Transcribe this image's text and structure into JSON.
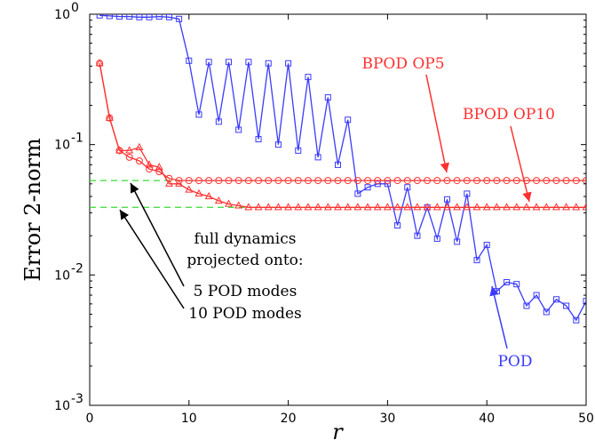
{
  "chart_data": {
    "type": "line",
    "xlabel": "r",
    "ylabel": "Error 2-norm",
    "xlim": [
      0,
      50
    ],
    "ylim": [
      0.001,
      1
    ],
    "yscale": "log",
    "grid": false,
    "xticks": [
      0,
      10,
      20,
      30,
      40,
      50
    ],
    "xtick_labels": [
      "0",
      "10",
      "20",
      "30",
      "40",
      "50"
    ],
    "yticks": [
      0.001,
      0.01,
      0.1,
      1
    ],
    "ytick_labels": [
      {
        "base": "10",
        "exp": "-3"
      },
      {
        "base": "10",
        "exp": "-2"
      },
      {
        "base": "10",
        "exp": "-1"
      },
      {
        "base": "10",
        "exp": "0"
      }
    ],
    "series": [
      {
        "name": "POD",
        "color": "#3a3aff",
        "marker": "square",
        "x": [
          1,
          2,
          3,
          4,
          5,
          6,
          7,
          8,
          9,
          10,
          11,
          12,
          13,
          14,
          15,
          16,
          17,
          18,
          19,
          20,
          21,
          22,
          23,
          24,
          25,
          26,
          27,
          28,
          29,
          30,
          31,
          32,
          33,
          34,
          35,
          36,
          37,
          38,
          39,
          40,
          41,
          42,
          43,
          44,
          45,
          46,
          47,
          48,
          49,
          50
        ],
        "y": [
          0.98,
          0.97,
          0.96,
          0.96,
          0.95,
          0.95,
          0.96,
          0.95,
          0.92,
          0.44,
          0.17,
          0.43,
          0.15,
          0.43,
          0.13,
          0.43,
          0.11,
          0.42,
          0.1,
          0.42,
          0.09,
          0.33,
          0.08,
          0.23,
          0.07,
          0.155,
          0.042,
          0.047,
          0.05,
          0.05,
          0.024,
          0.047,
          0.02,
          0.033,
          0.019,
          0.038,
          0.018,
          0.042,
          0.013,
          0.017,
          0.0075,
          0.0088,
          0.0085,
          0.0058,
          0.007,
          0.0052,
          0.0065,
          0.0058,
          0.0045,
          0.0063
        ]
      },
      {
        "name": "BPOD OP5",
        "color": "#ff3030",
        "marker": "circle",
        "x": [
          1,
          2,
          3,
          4,
          5,
          6,
          7,
          8,
          9,
          10,
          11,
          12,
          13,
          14,
          15,
          16,
          17,
          18,
          19,
          20,
          21,
          22,
          23,
          24,
          25,
          26,
          27,
          28,
          29,
          30,
          31,
          32,
          33,
          34,
          35,
          36,
          37,
          38,
          39,
          40,
          41,
          42,
          43,
          44,
          45,
          46,
          47,
          48,
          49,
          50
        ],
        "y": [
          0.42,
          0.16,
          0.09,
          0.08,
          0.075,
          0.065,
          0.062,
          0.055,
          0.053,
          0.053,
          0.053,
          0.053,
          0.053,
          0.053,
          0.053,
          0.053,
          0.053,
          0.053,
          0.053,
          0.053,
          0.053,
          0.053,
          0.053,
          0.053,
          0.053,
          0.053,
          0.053,
          0.053,
          0.053,
          0.053,
          0.053,
          0.053,
          0.053,
          0.053,
          0.053,
          0.053,
          0.053,
          0.053,
          0.053,
          0.053,
          0.053,
          0.053,
          0.053,
          0.053,
          0.053,
          0.053,
          0.053,
          0.053,
          0.053,
          0.053
        ]
      },
      {
        "name": "BPOD OP10",
        "color": "#ff3030",
        "marker": "triangle",
        "x": [
          1,
          2,
          3,
          4,
          5,
          6,
          7,
          8,
          9,
          10,
          11,
          12,
          13,
          14,
          15,
          16,
          17,
          18,
          19,
          20,
          21,
          22,
          23,
          24,
          25,
          26,
          27,
          28,
          29,
          30,
          31,
          32,
          33,
          34,
          35,
          36,
          37,
          38,
          39,
          40,
          41,
          42,
          43,
          44,
          45,
          46,
          47,
          48,
          49,
          50
        ],
        "y": [
          0.42,
          0.16,
          0.09,
          0.09,
          0.095,
          0.07,
          0.067,
          0.05,
          0.05,
          0.045,
          0.042,
          0.04,
          0.037,
          0.035,
          0.034,
          0.033,
          0.033,
          0.033,
          0.033,
          0.033,
          0.033,
          0.033,
          0.033,
          0.033,
          0.033,
          0.033,
          0.033,
          0.033,
          0.033,
          0.033,
          0.033,
          0.033,
          0.033,
          0.033,
          0.033,
          0.033,
          0.033,
          0.033,
          0.033,
          0.033,
          0.033,
          0.033,
          0.033,
          0.033,
          0.033,
          0.033,
          0.033,
          0.033,
          0.033,
          0.033
        ]
      }
    ],
    "reference_lines": [
      {
        "y": 0.053,
        "color": "#33dd33",
        "style": "dashed"
      },
      {
        "y": 0.033,
        "color": "#33dd33",
        "style": "dashed"
      }
    ],
    "annotations": {
      "bpod_op5": {
        "text": "BPOD OP5",
        "color": "#ff3030",
        "arrow_to": {
          "x": 36,
          "y": 0.053
        }
      },
      "bpod_op10": {
        "text": "BPOD OP10",
        "color": "#ff3030",
        "arrow_to": {
          "x": 44.7,
          "y": 0.033
        }
      },
      "pod": {
        "text": "POD",
        "color": "#3a3aff",
        "arrow_to": {
          "x": 41.5,
          "y": 0.0085
        }
      },
      "full_dynamics": {
        "lines": [
          "full dynamics",
          "projected onto:",
          "5 POD modes",
          "10 POD modes"
        ],
        "color": "#000000",
        "arrows_to": [
          {
            "x": 4,
            "y": 0.053
          },
          {
            "x": 3.2,
            "y": 0.033
          }
        ]
      }
    }
  }
}
